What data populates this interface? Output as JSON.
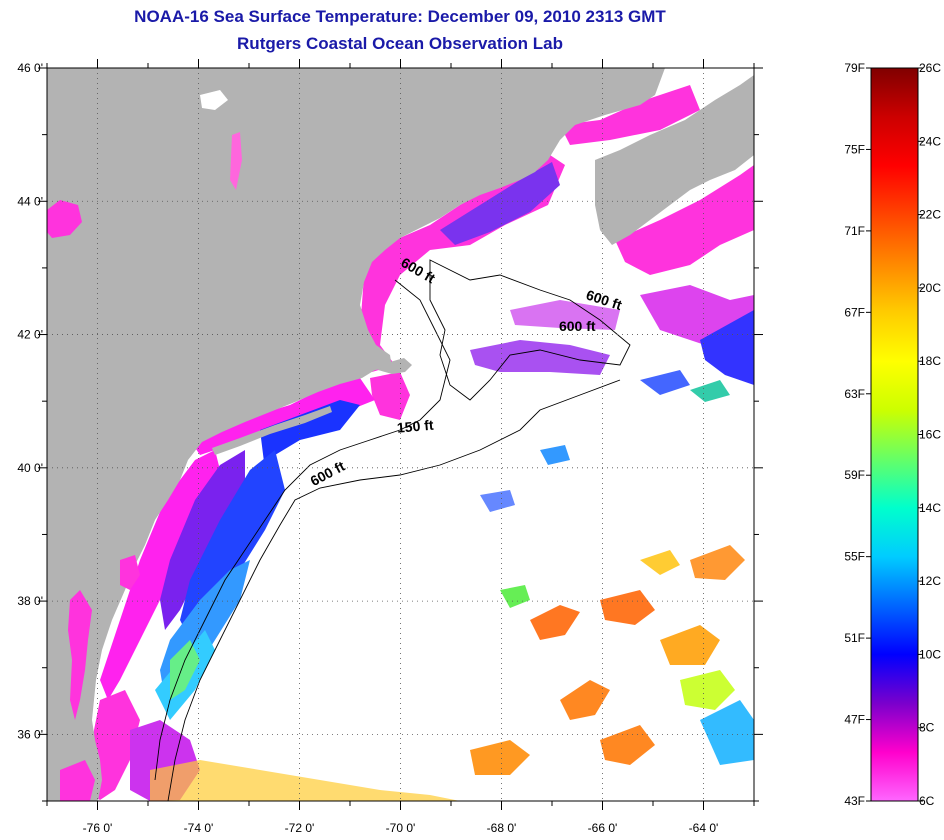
{
  "title_line_1": "NOAA-16 Sea Surface Temperature:  December 09, 2010 2313 GMT",
  "title_line_2": "Rutgers Coastal Ocean Observation Lab",
  "map": {
    "lon_range": [
      -77,
      -63
    ],
    "lat_range": [
      35,
      46
    ],
    "lon_ticks": [
      {
        "value": -76,
        "label": "-76 0'"
      },
      {
        "value": -74,
        "label": "-74 0'"
      },
      {
        "value": -72,
        "label": "-72 0'"
      },
      {
        "value": -70,
        "label": "-70 0'"
      },
      {
        "value": -68,
        "label": "-68 0'"
      },
      {
        "value": -66,
        "label": "-66 0'"
      },
      {
        "value": -64,
        "label": "-64 0'"
      }
    ],
    "lat_ticks": [
      {
        "value": 46,
        "label": "46 0'"
      },
      {
        "value": 44,
        "label": "44 0'"
      },
      {
        "value": 42,
        "label": "42 0'"
      },
      {
        "value": 40,
        "label": "40 0'"
      },
      {
        "value": 38,
        "label": "38 0'"
      },
      {
        "value": 36,
        "label": "36 0'"
      }
    ],
    "contour_labels": [
      {
        "text": "600 ft",
        "lon": -69.7,
        "lat": 42.9,
        "rotate": 30
      },
      {
        "text": "600 ft",
        "lon": -66.0,
        "lat": 42.45,
        "rotate": 18
      },
      {
        "text": "600 ft",
        "lon": -66.5,
        "lat": 42.05,
        "rotate": 0
      },
      {
        "text": "150 ft",
        "lon": -69.7,
        "lat": 40.55,
        "rotate": -5
      },
      {
        "text": "600 ft",
        "lon": -71.4,
        "lat": 39.85,
        "rotate": -28
      }
    ],
    "colors": {
      "land": "#b3b3b3",
      "ocean_nodata": "#ffffff",
      "grid": "#555555"
    }
  },
  "colorbar": {
    "fahrenheit_labels": [
      "79F",
      "75F",
      "71F",
      "67F",
      "63F",
      "59F",
      "55F",
      "51F",
      "47F",
      "43F"
    ],
    "celsius_labels": [
      "26C",
      "24C",
      "22C",
      "20C",
      "18C",
      "16C",
      "14C",
      "12C",
      "10C",
      "8C",
      "6C"
    ],
    "gradient_stops": [
      "#ff66ff",
      "#ff00cc",
      "#7a00cc",
      "#0000ff",
      "#0066ff",
      "#00ccff",
      "#00ffcc",
      "#66ff66",
      "#ccff00",
      "#ffff00",
      "#ffcc00",
      "#ff8800",
      "#ff4400",
      "#ff0000",
      "#cc0000",
      "#800000"
    ]
  }
}
